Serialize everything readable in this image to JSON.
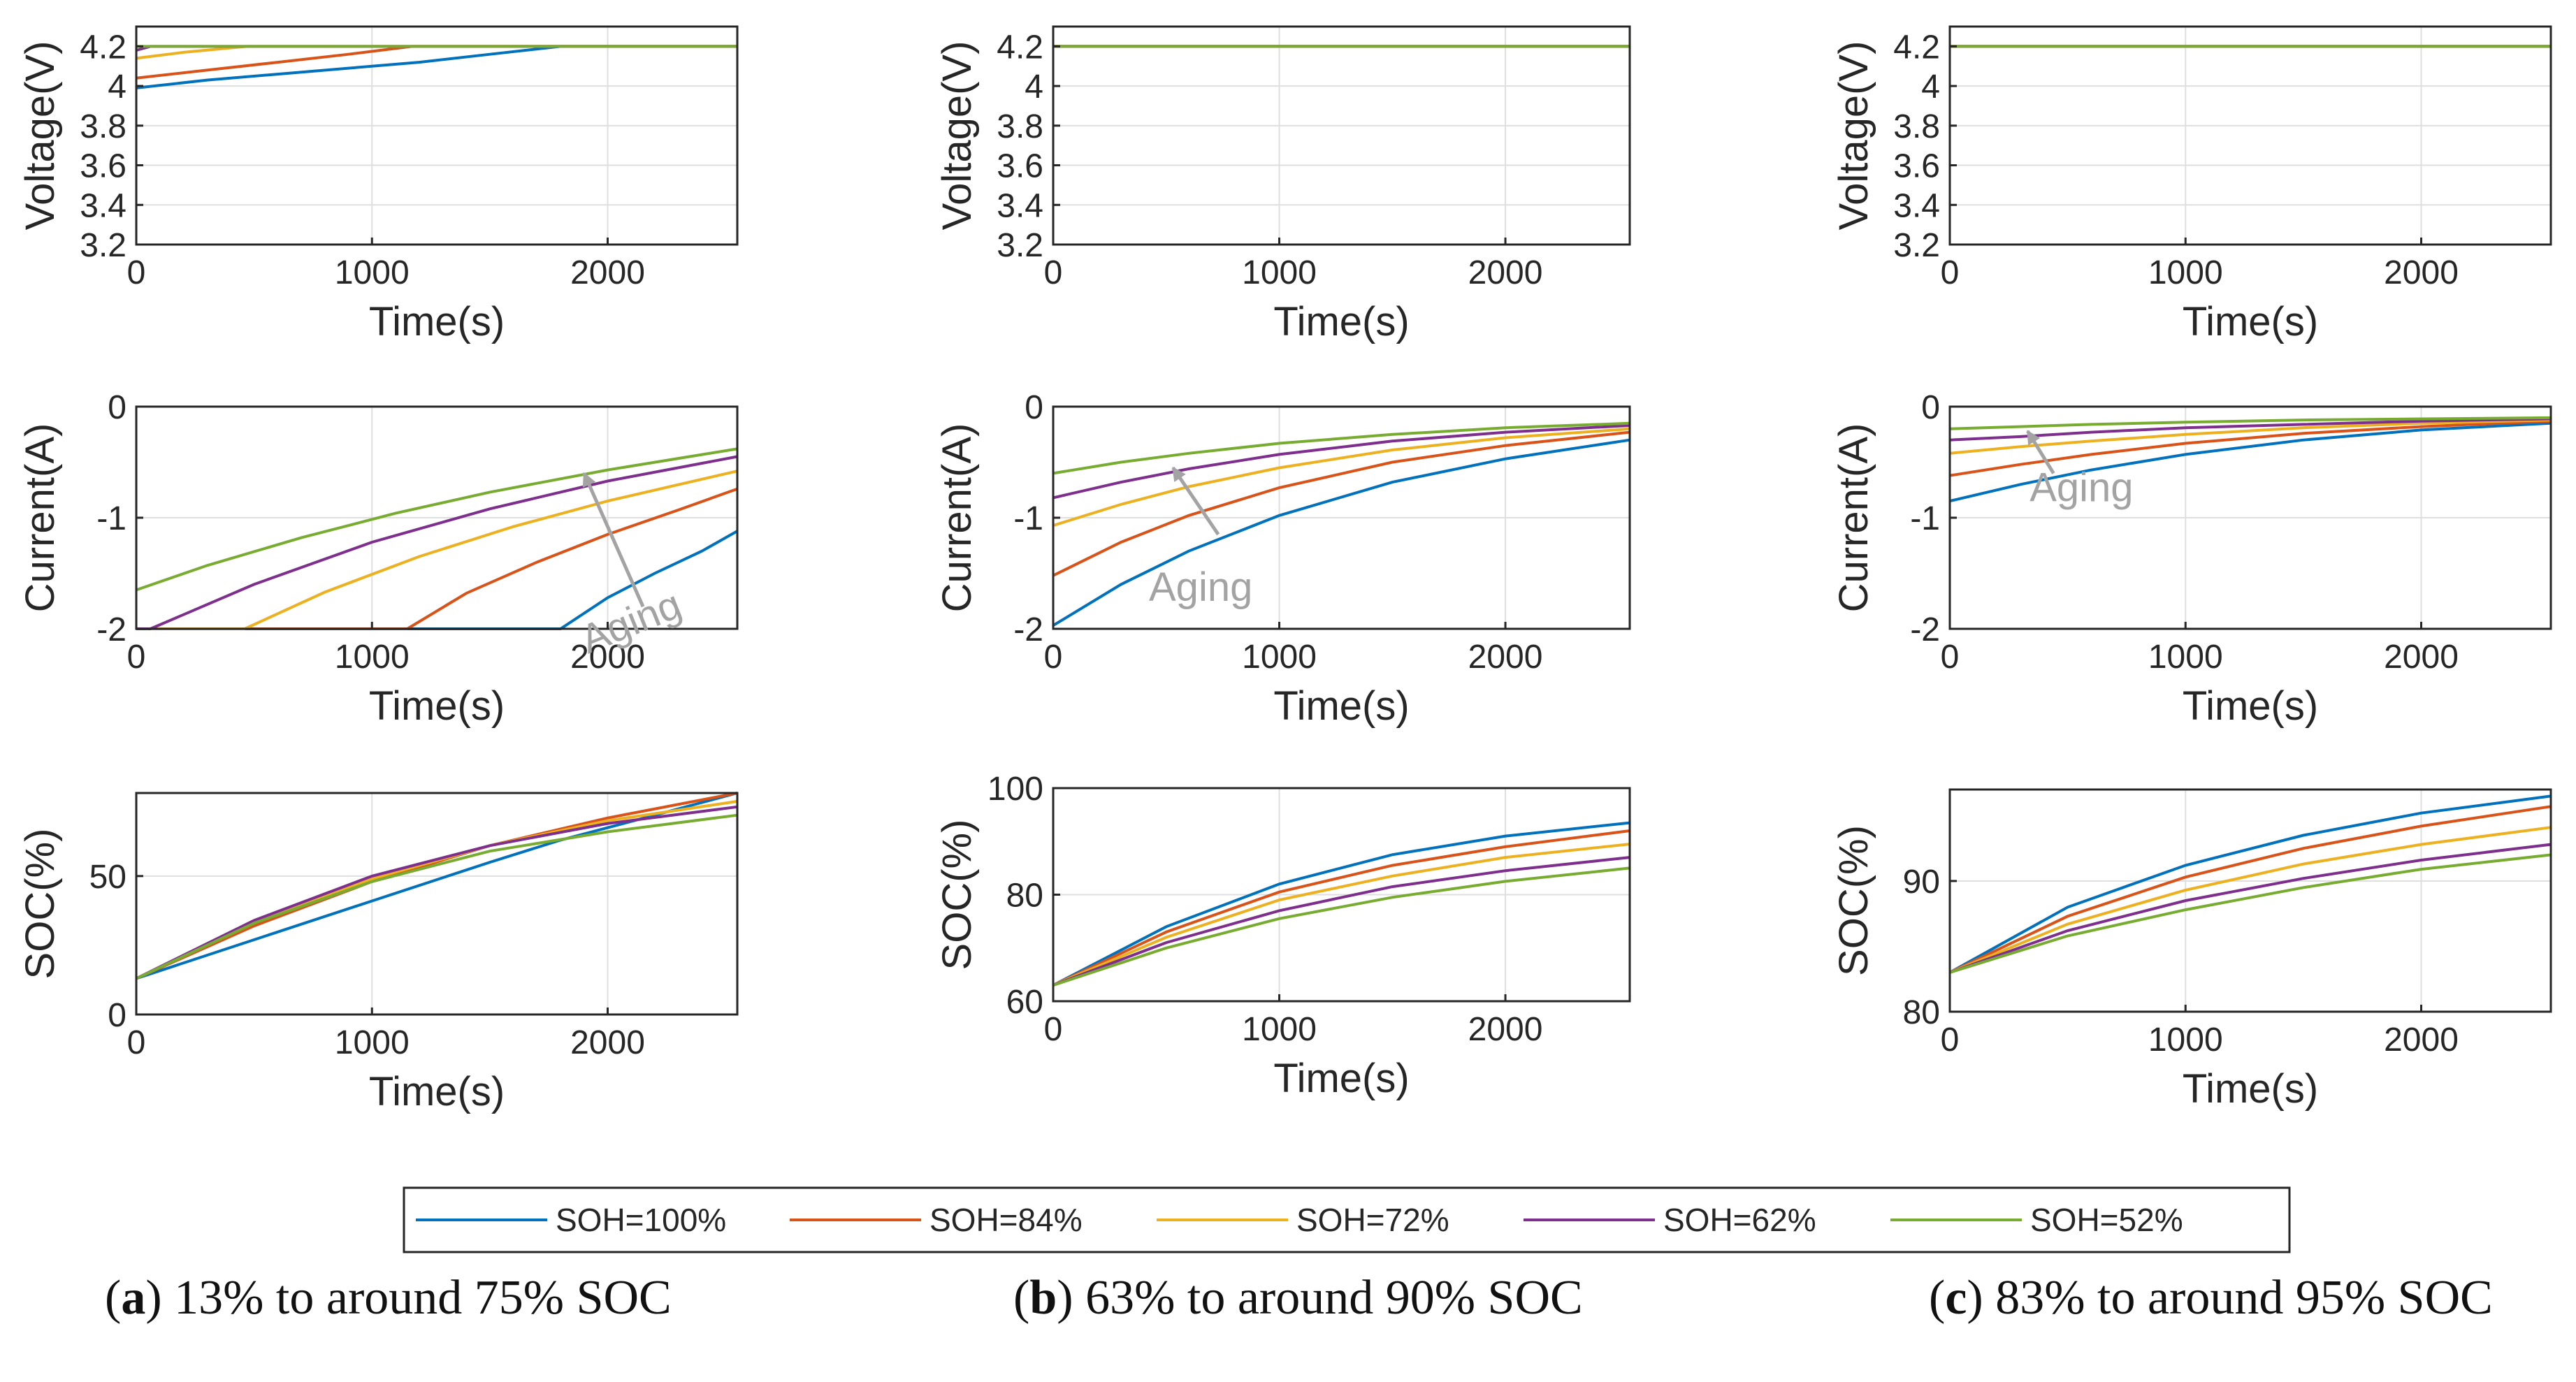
{
  "figure": {
    "legend": [
      {
        "label": "SOH=100%",
        "color": "#0072BD"
      },
      {
        "label": "SOH=84%",
        "color": "#D95319"
      },
      {
        "label": "SOH=72%",
        "color": "#EDB120"
      },
      {
        "label": "SOH=62%",
        "color": "#7E2F8E"
      },
      {
        "label": "SOH=52%",
        "color": "#77AC30"
      }
    ],
    "captions": [
      {
        "letter": "a",
        "text": "13% to around 75% SOC"
      },
      {
        "letter": "b",
        "text": "63% to around 90% SOC"
      },
      {
        "letter": "c",
        "text": "83% to around 95% SOC"
      }
    ]
  },
  "chart_data": [
    {
      "id": "a1",
      "type": "line",
      "xlabel": "Time(s)",
      "ylabel": "Voltage(V)",
      "xlim": [
        0,
        2550
      ],
      "ylim": [
        3.2,
        4.3
      ],
      "xticks": [
        0,
        1000,
        2000
      ],
      "yticks": [
        3.2,
        3.4,
        3.6,
        3.8,
        4,
        4.2
      ],
      "series": [
        {
          "name": "SOH=100%",
          "x": [
            0,
            300,
            600,
            900,
            1200,
            1500,
            1800,
            2550
          ],
          "y": [
            3.99,
            4.03,
            4.06,
            4.09,
            4.12,
            4.16,
            4.2,
            4.2
          ]
        },
        {
          "name": "SOH=84%",
          "x": [
            0,
            300,
            600,
            900,
            1170,
            2550
          ],
          "y": [
            4.04,
            4.08,
            4.12,
            4.16,
            4.2,
            4.2
          ]
        },
        {
          "name": "SOH=72%",
          "x": [
            0,
            200,
            470,
            2550
          ],
          "y": [
            4.14,
            4.17,
            4.2,
            4.2
          ]
        },
        {
          "name": "SOH=62%",
          "x": [
            0,
            60,
            2550
          ],
          "y": [
            4.18,
            4.2,
            4.2
          ]
        },
        {
          "name": "SOH=52%",
          "x": [
            0,
            2550
          ],
          "y": [
            4.2,
            4.2
          ]
        }
      ],
      "annotation": null
    },
    {
      "id": "a2",
      "type": "line",
      "xlabel": "Time(s)",
      "ylabel": "Current(A)",
      "xlim": [
        0,
        2550
      ],
      "ylim": [
        -2,
        0
      ],
      "xticks": [
        0,
        1000,
        2000
      ],
      "yticks": [
        -2,
        -1,
        0
      ],
      "series": [
        {
          "name": "SOH=100%",
          "x": [
            0,
            1800,
            2000,
            2200,
            2400,
            2550
          ],
          "y": [
            -2,
            -2,
            -1.72,
            -1.5,
            -1.3,
            -1.12
          ]
        },
        {
          "name": "SOH=84%",
          "x": [
            0,
            1150,
            1400,
            1700,
            2000,
            2300,
            2550
          ],
          "y": [
            -2,
            -2,
            -1.68,
            -1.4,
            -1.15,
            -0.93,
            -0.74
          ]
        },
        {
          "name": "SOH=72%",
          "x": [
            0,
            460,
            800,
            1200,
            1600,
            2000,
            2550
          ],
          "y": [
            -2,
            -2,
            -1.67,
            -1.35,
            -1.08,
            -0.85,
            -0.58
          ]
        },
        {
          "name": "SOH=62%",
          "x": [
            0,
            60,
            500,
            1000,
            1500,
            2000,
            2550
          ],
          "y": [
            -2,
            -2,
            -1.6,
            -1.22,
            -0.92,
            -0.67,
            -0.45
          ]
        },
        {
          "name": "SOH=52%",
          "x": [
            0,
            300,
            700,
            1100,
            1500,
            2000,
            2550
          ],
          "y": [
            -1.65,
            -1.43,
            -1.18,
            -0.96,
            -0.77,
            -0.57,
            -0.38
          ]
        }
      ],
      "annotation": {
        "text": "Aging",
        "arrow_from": [
          2150,
          -1.8
        ],
        "arrow_to": [
          1900,
          -0.6
        ]
      }
    },
    {
      "id": "a3",
      "type": "line",
      "xlabel": "Time(s)",
      "ylabel": "SOC(%)",
      "xlim": [
        0,
        2550
      ],
      "ylim": [
        0,
        80
      ],
      "xticks": [
        0,
        1000,
        2000
      ],
      "yticks": [
        0,
        50
      ],
      "series": [
        {
          "name": "SOH=100%",
          "x": [
            0,
            500,
            1000,
            1500,
            1800,
            2200,
            2550
          ],
          "y": [
            13,
            27,
            41,
            55,
            63,
            72,
            80
          ]
        },
        {
          "name": "SOH=84%",
          "x": [
            0,
            500,
            1000,
            1500,
            2000,
            2550
          ],
          "y": [
            13,
            32,
            48,
            61,
            71,
            80
          ]
        },
        {
          "name": "SOH=72%",
          "x": [
            0,
            500,
            1000,
            1500,
            2000,
            2550
          ],
          "y": [
            13,
            33,
            49,
            61,
            70,
            77
          ]
        },
        {
          "name": "SOH=62%",
          "x": [
            0,
            500,
            1000,
            1500,
            2000,
            2550
          ],
          "y": [
            13,
            34,
            50,
            61,
            69,
            75
          ]
        },
        {
          "name": "SOH=52%",
          "x": [
            0,
            500,
            1000,
            1500,
            2000,
            2550
          ],
          "y": [
            13,
            33,
            48,
            59,
            66,
            72
          ]
        }
      ],
      "annotation": null
    },
    {
      "id": "b1",
      "type": "line",
      "xlabel": "Time(s)",
      "ylabel": "Voltage(V)",
      "xlim": [
        0,
        2550
      ],
      "ylim": [
        3.2,
        4.3
      ],
      "xticks": [
        0,
        1000,
        2000
      ],
      "yticks": [
        3.2,
        3.4,
        3.6,
        3.8,
        4,
        4.2
      ],
      "series": [
        {
          "name": "SOH=100%",
          "x": [
            0,
            2550
          ],
          "y": [
            4.2,
            4.2
          ]
        },
        {
          "name": "SOH=84%",
          "x": [
            0,
            2550
          ],
          "y": [
            4.2,
            4.2
          ]
        },
        {
          "name": "SOH=72%",
          "x": [
            0,
            2550
          ],
          "y": [
            4.2,
            4.2
          ]
        },
        {
          "name": "SOH=62%",
          "x": [
            0,
            2550
          ],
          "y": [
            4.2,
            4.2
          ]
        },
        {
          "name": "SOH=52%",
          "x": [
            0,
            2550
          ],
          "y": [
            4.2,
            4.2
          ]
        }
      ],
      "annotation": null
    },
    {
      "id": "b2",
      "type": "line",
      "xlabel": "Time(s)",
      "ylabel": "Current(A)",
      "xlim": [
        0,
        2550
      ],
      "ylim": [
        -2,
        0
      ],
      "xticks": [
        0,
        1000,
        2000
      ],
      "yticks": [
        -2,
        -1,
        0
      ],
      "series": [
        {
          "name": "SOH=100%",
          "x": [
            0,
            300,
            600,
            1000,
            1500,
            2000,
            2550
          ],
          "y": [
            -1.97,
            -1.6,
            -1.3,
            -0.98,
            -0.68,
            -0.47,
            -0.3
          ]
        },
        {
          "name": "SOH=84%",
          "x": [
            0,
            300,
            600,
            1000,
            1500,
            2000,
            2550
          ],
          "y": [
            -1.52,
            -1.22,
            -0.98,
            -0.73,
            -0.5,
            -0.35,
            -0.23
          ]
        },
        {
          "name": "SOH=72%",
          "x": [
            0,
            300,
            600,
            1000,
            1500,
            2000,
            2550
          ],
          "y": [
            -1.07,
            -0.88,
            -0.72,
            -0.55,
            -0.39,
            -0.28,
            -0.2
          ]
        },
        {
          "name": "SOH=62%",
          "x": [
            0,
            300,
            600,
            1000,
            1500,
            2000,
            2550
          ],
          "y": [
            -0.82,
            -0.68,
            -0.56,
            -0.43,
            -0.31,
            -0.23,
            -0.17
          ]
        },
        {
          "name": "SOH=52%",
          "x": [
            0,
            300,
            600,
            1000,
            1500,
            2000,
            2550
          ],
          "y": [
            -0.6,
            -0.5,
            -0.42,
            -0.33,
            -0.25,
            -0.19,
            -0.15
          ]
        }
      ],
      "annotation": {
        "text": "Aging",
        "arrow_from": [
          730,
          -1.15
        ],
        "arrow_to": [
          530,
          -0.55
        ]
      }
    },
    {
      "id": "b3",
      "type": "line",
      "xlabel": "Time(s)",
      "ylabel": "SOC(%)",
      "xlim": [
        0,
        2550
      ],
      "ylim": [
        60,
        100
      ],
      "xticks": [
        0,
        1000,
        2000
      ],
      "yticks": [
        60,
        80,
        100
      ],
      "series": [
        {
          "name": "SOH=100%",
          "x": [
            0,
            500,
            1000,
            1500,
            2000,
            2550
          ],
          "y": [
            63,
            74,
            82,
            87.5,
            91,
            93.5
          ]
        },
        {
          "name": "SOH=84%",
          "x": [
            0,
            500,
            1000,
            1500,
            2000,
            2550
          ],
          "y": [
            63,
            73,
            80.5,
            85.5,
            89,
            92
          ]
        },
        {
          "name": "SOH=72%",
          "x": [
            0,
            500,
            1000,
            1500,
            2000,
            2550
          ],
          "y": [
            63,
            72,
            79,
            83.5,
            87,
            89.5
          ]
        },
        {
          "name": "SOH=62%",
          "x": [
            0,
            500,
            1000,
            1500,
            2000,
            2550
          ],
          "y": [
            63,
            71,
            77,
            81.5,
            84.5,
            87
          ]
        },
        {
          "name": "SOH=52%",
          "x": [
            0,
            500,
            1000,
            1500,
            2000,
            2550
          ],
          "y": [
            63,
            70,
            75.5,
            79.5,
            82.5,
            85
          ]
        }
      ],
      "annotation": null
    },
    {
      "id": "c1",
      "type": "line",
      "xlabel": "Time(s)",
      "ylabel": "Voltage(V)",
      "xlim": [
        0,
        2550
      ],
      "ylim": [
        3.2,
        4.3
      ],
      "xticks": [
        0,
        1000,
        2000
      ],
      "yticks": [
        3.2,
        3.4,
        3.6,
        3.8,
        4,
        4.2
      ],
      "series": [
        {
          "name": "SOH=100%",
          "x": [
            0,
            2550
          ],
          "y": [
            4.2,
            4.2
          ]
        },
        {
          "name": "SOH=84%",
          "x": [
            0,
            2550
          ],
          "y": [
            4.2,
            4.2
          ]
        },
        {
          "name": "SOH=72%",
          "x": [
            0,
            2550
          ],
          "y": [
            4.2,
            4.2
          ]
        },
        {
          "name": "SOH=62%",
          "x": [
            0,
            2550
          ],
          "y": [
            4.2,
            4.2
          ]
        },
        {
          "name": "SOH=52%",
          "x": [
            0,
            2550
          ],
          "y": [
            4.2,
            4.2
          ]
        }
      ],
      "annotation": null
    },
    {
      "id": "c2",
      "type": "line",
      "xlabel": "Time(s)",
      "ylabel": "Current(A)",
      "xlim": [
        0,
        2550
      ],
      "ylim": [
        -2,
        0
      ],
      "xticks": [
        0,
        1000,
        2000
      ],
      "yticks": [
        -2,
        -1,
        0
      ],
      "series": [
        {
          "name": "SOH=100%",
          "x": [
            0,
            300,
            600,
            1000,
            1500,
            2000,
            2550
          ],
          "y": [
            -0.85,
            -0.7,
            -0.57,
            -0.43,
            -0.3,
            -0.21,
            -0.15
          ]
        },
        {
          "name": "SOH=84%",
          "x": [
            0,
            300,
            600,
            1000,
            1500,
            2000,
            2550
          ],
          "y": [
            -0.62,
            -0.52,
            -0.43,
            -0.33,
            -0.24,
            -0.18,
            -0.13
          ]
        },
        {
          "name": "SOH=72%",
          "x": [
            0,
            300,
            600,
            1000,
            1500,
            2000,
            2550
          ],
          "y": [
            -0.42,
            -0.36,
            -0.31,
            -0.25,
            -0.19,
            -0.15,
            -0.12
          ]
        },
        {
          "name": "SOH=62%",
          "x": [
            0,
            300,
            600,
            1000,
            1500,
            2000,
            2550
          ],
          "y": [
            -0.3,
            -0.27,
            -0.23,
            -0.19,
            -0.16,
            -0.13,
            -0.11
          ]
        },
        {
          "name": "SOH=52%",
          "x": [
            0,
            300,
            600,
            1000,
            1500,
            2000,
            2550
          ],
          "y": [
            -0.2,
            -0.18,
            -0.16,
            -0.14,
            -0.12,
            -0.11,
            -0.1
          ]
        }
      ],
      "annotation": {
        "text": "Aging",
        "arrow_from": [
          440,
          -0.6
        ],
        "arrow_to": [
          330,
          -0.22
        ]
      }
    },
    {
      "id": "c3",
      "type": "line",
      "xlabel": "Time(s)",
      "ylabel": "SOC(%)",
      "xlim": [
        0,
        2550
      ],
      "ylim": [
        80,
        97
      ],
      "xticks": [
        0,
        1000,
        2000
      ],
      "yticks": [
        80,
        90
      ],
      "series": [
        {
          "name": "SOH=100%",
          "x": [
            0,
            500,
            1000,
            1500,
            2000,
            2550
          ],
          "y": [
            83,
            88,
            91.2,
            93.5,
            95.2,
            96.5
          ]
        },
        {
          "name": "SOH=84%",
          "x": [
            0,
            500,
            1000,
            1500,
            2000,
            2550
          ],
          "y": [
            83,
            87.3,
            90.3,
            92.5,
            94.2,
            95.7
          ]
        },
        {
          "name": "SOH=72%",
          "x": [
            0,
            500,
            1000,
            1500,
            2000,
            2550
          ],
          "y": [
            83,
            86.7,
            89.3,
            91.3,
            92.8,
            94.1
          ]
        },
        {
          "name": "SOH=62%",
          "x": [
            0,
            500,
            1000,
            1500,
            2000,
            2550
          ],
          "y": [
            83,
            86.2,
            88.5,
            90.2,
            91.6,
            92.8
          ]
        },
        {
          "name": "SOH=52%",
          "x": [
            0,
            500,
            1000,
            1500,
            2000,
            2550
          ],
          "y": [
            83,
            85.8,
            87.8,
            89.5,
            90.9,
            92
          ]
        }
      ],
      "annotation": null
    }
  ]
}
